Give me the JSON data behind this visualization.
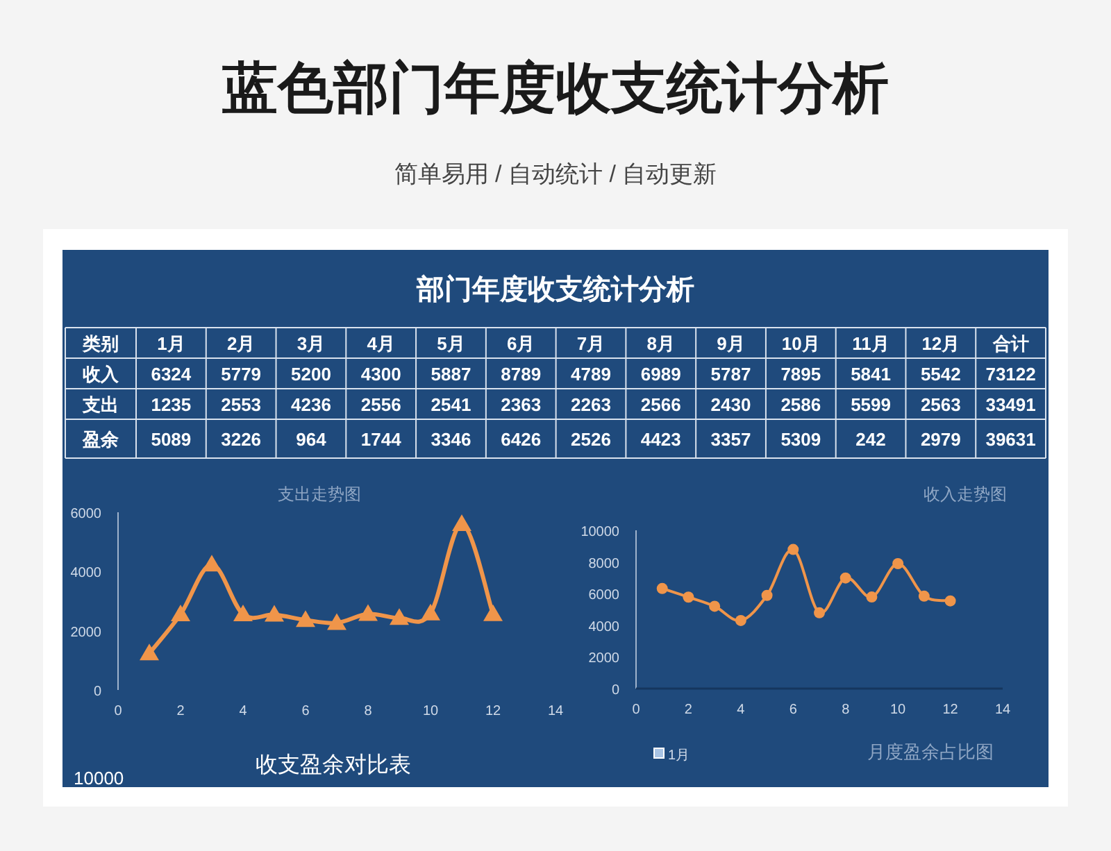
{
  "chart_data": [
    {
      "type": "heatmap",
      "title": "蓝色部门年度收支统计分析",
      "subtitle": "简单易用  /  自动统计  /  自动更新",
      "annotations": [
        "部门年度收支统计分析"
      ],
      "xlabel": "类别",
      "categories": [
        "1月",
        "2月",
        "3月",
        "4月",
        "5月",
        "6月",
        "7月",
        "8月",
        "9月",
        "10月",
        "11月",
        "12月",
        "合计"
      ],
      "y_categories": [
        "收入",
        "支出",
        "盈余"
      ],
      "cells": [
        [
          6324,
          5779,
          5200,
          4300,
          5887,
          8789,
          4789,
          6989,
          5787,
          7895,
          5841,
          5542,
          73122
        ],
        [
          1235,
          2553,
          4236,
          2556,
          2541,
          2363,
          2263,
          2566,
          2430,
          2586,
          5599,
          2563,
          33491
        ],
        [
          5089,
          3226,
          964,
          1744,
          3346,
          6426,
          2526,
          4423,
          3357,
          5309,
          242,
          2979,
          39631
        ]
      ],
      "data_labels": true
    },
    {
      "type": "line",
      "title": "支出走势图",
      "x": [
        1,
        2,
        3,
        4,
        5,
        6,
        7,
        8,
        9,
        10,
        11,
        12
      ],
      "values": [
        1235,
        2553,
        4236,
        2556,
        2541,
        2363,
        2263,
        2566,
        2430,
        2586,
        5599,
        2563
      ],
      "color": "#f0954a",
      "marker": "triangle",
      "xlim": [
        0,
        14
      ],
      "xticks": [
        0,
        2,
        4,
        6,
        8,
        10,
        12,
        14
      ],
      "ylim": [
        0,
        6000
      ],
      "yticks": [
        0,
        2000,
        4000,
        6000
      ]
    },
    {
      "type": "line",
      "title": "收入走势图",
      "x": [
        1,
        2,
        3,
        4,
        5,
        6,
        7,
        8,
        9,
        10,
        11,
        12
      ],
      "values": [
        6324,
        5779,
        5200,
        4300,
        5887,
        8789,
        4789,
        6989,
        5787,
        7895,
        5841,
        5542
      ],
      "color": "#f0954a",
      "marker": "circle",
      "xlim": [
        0,
        14
      ],
      "xticks": [
        0,
        2,
        4,
        6,
        8,
        10,
        12,
        14
      ],
      "ylim": [
        0,
        10000
      ],
      "yticks": [
        0,
        2000,
        4000,
        6000,
        8000,
        10000
      ]
    },
    {
      "type": "other",
      "title": "收支盈余对比表",
      "annotations": [
        "10000"
      ]
    },
    {
      "type": "other",
      "title": "月度盈余占比图",
      "annotations": [
        "1月"
      ]
    }
  ]
}
